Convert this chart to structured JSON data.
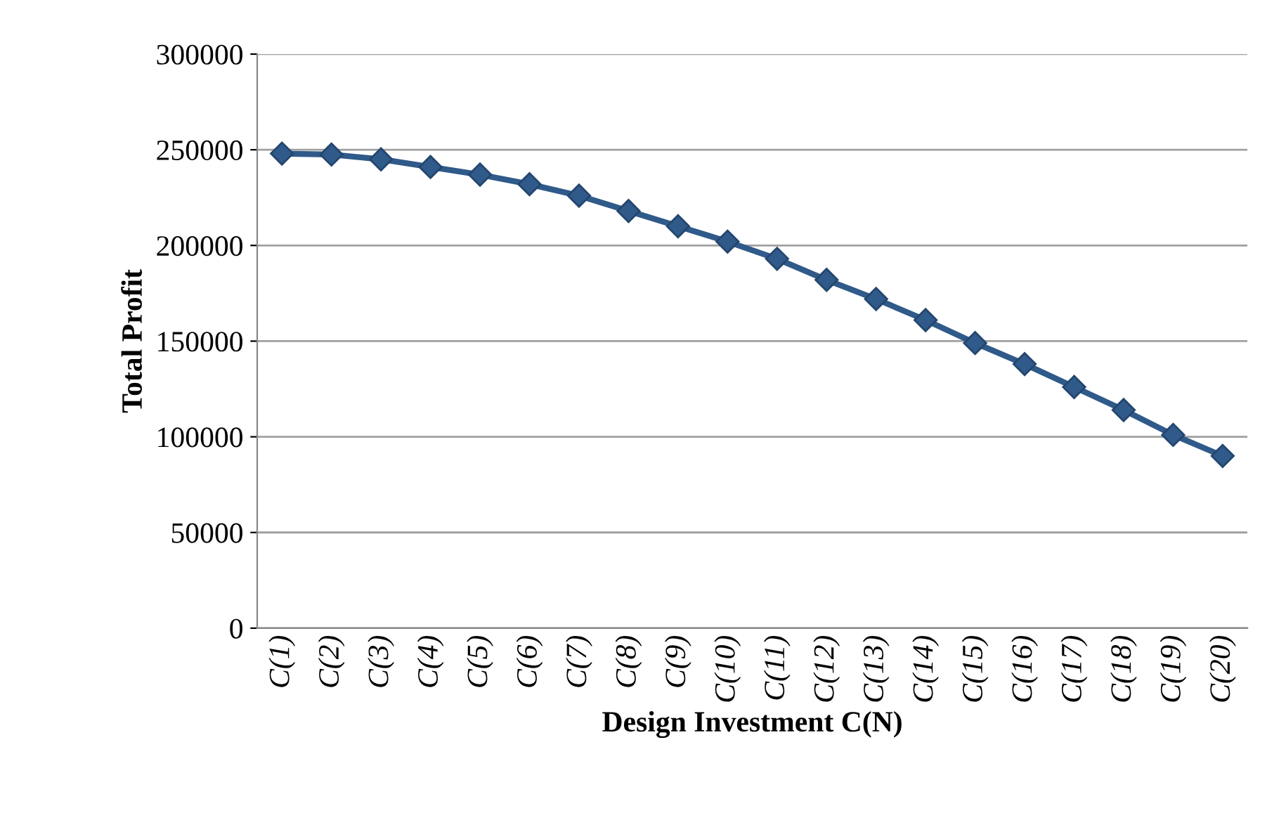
{
  "chart_data": {
    "type": "line",
    "xlabel": "Design Investment C(N)",
    "ylabel": "Total Profit",
    "categories": [
      "C(1)",
      "C(2)",
      "C(3)",
      "C(4)",
      "C(5)",
      "C(6)",
      "C(7)",
      "C(8)",
      "C(9)",
      "C(10)",
      "C(11)",
      "C(12)",
      "C(13)",
      "C(14)",
      "C(15)",
      "C(16)",
      "C(17)",
      "C(18)",
      "C(19)",
      "C(20)"
    ],
    "series": [
      {
        "color": "#2f5a8a",
        "values": [
          248000,
          247500,
          245000,
          241000,
          237000,
          232000,
          226000,
          218000,
          210000,
          202000,
          193000,
          182000,
          172000,
          161000,
          149000,
          138000,
          126000,
          114000,
          101000,
          90000
        ]
      }
    ],
    "ylim": [
      0,
      300000
    ],
    "yticks": [
      0,
      50000,
      100000,
      150000,
      200000,
      250000,
      300000
    ],
    "grid": "y",
    "marker": "diamond",
    "line_style": "solid"
  }
}
